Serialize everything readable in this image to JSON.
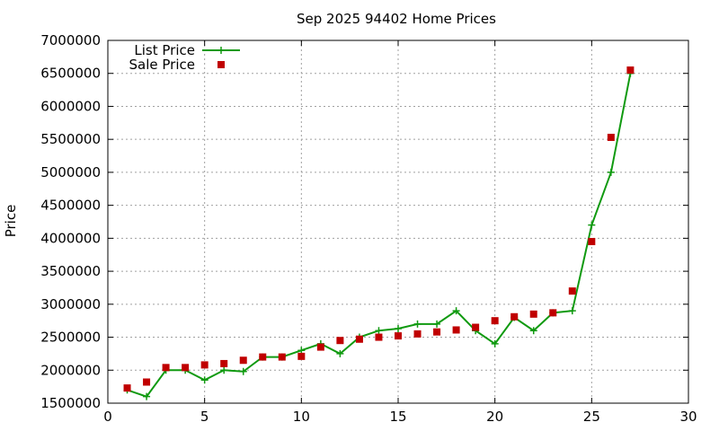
{
  "chart_data": {
    "type": "line",
    "title": "Sep 2025 94402 Home Prices",
    "xlabel": "",
    "ylabel": "Price",
    "xlim": [
      0,
      30
    ],
    "ylim": [
      1500000,
      7000000
    ],
    "x_ticks": [
      "0",
      "5",
      "10",
      "15",
      "20",
      "25",
      "30"
    ],
    "y_ticks": [
      "1500000",
      "2000000",
      "2500000",
      "3000000",
      "3500000",
      "4000000",
      "4500000",
      "5000000",
      "5500000",
      "6000000",
      "6500000",
      "7000000"
    ],
    "grid": true,
    "legend_position": "top-left",
    "series": [
      {
        "name": "List Price",
        "style": "line-plus",
        "color": "#109a10",
        "x": [
          1,
          2,
          3,
          4,
          5,
          6,
          7,
          8,
          9,
          10,
          11,
          12,
          13,
          14,
          15,
          16,
          17,
          18,
          19,
          20,
          21,
          22,
          23,
          24,
          25,
          26,
          27
        ],
        "y": [
          1700000,
          1600000,
          2000000,
          2000000,
          1850000,
          2000000,
          1980000,
          2200000,
          2200000,
          2300000,
          2400000,
          2250000,
          2500000,
          2600000,
          2630000,
          2700000,
          2700000,
          2900000,
          2600000,
          2400000,
          2800000,
          2600000,
          2870000,
          2900000,
          4200000,
          5000000,
          6500000
        ]
      },
      {
        "name": "Sale Price",
        "style": "square",
        "color": "#c00000",
        "x": [
          1,
          2,
          3,
          4,
          5,
          6,
          7,
          8,
          9,
          10,
          11,
          12,
          13,
          14,
          15,
          16,
          17,
          18,
          19,
          20,
          21,
          22,
          23,
          24,
          25,
          26,
          27
        ],
        "y": [
          1730000,
          1820000,
          2040000,
          2040000,
          2080000,
          2100000,
          2150000,
          2200000,
          2200000,
          2210000,
          2350000,
          2450000,
          2470000,
          2500000,
          2520000,
          2550000,
          2580000,
          2610000,
          2650000,
          2750000,
          2810000,
          2850000,
          2870000,
          3200000,
          3950000,
          5530000,
          6550000
        ]
      }
    ]
  }
}
